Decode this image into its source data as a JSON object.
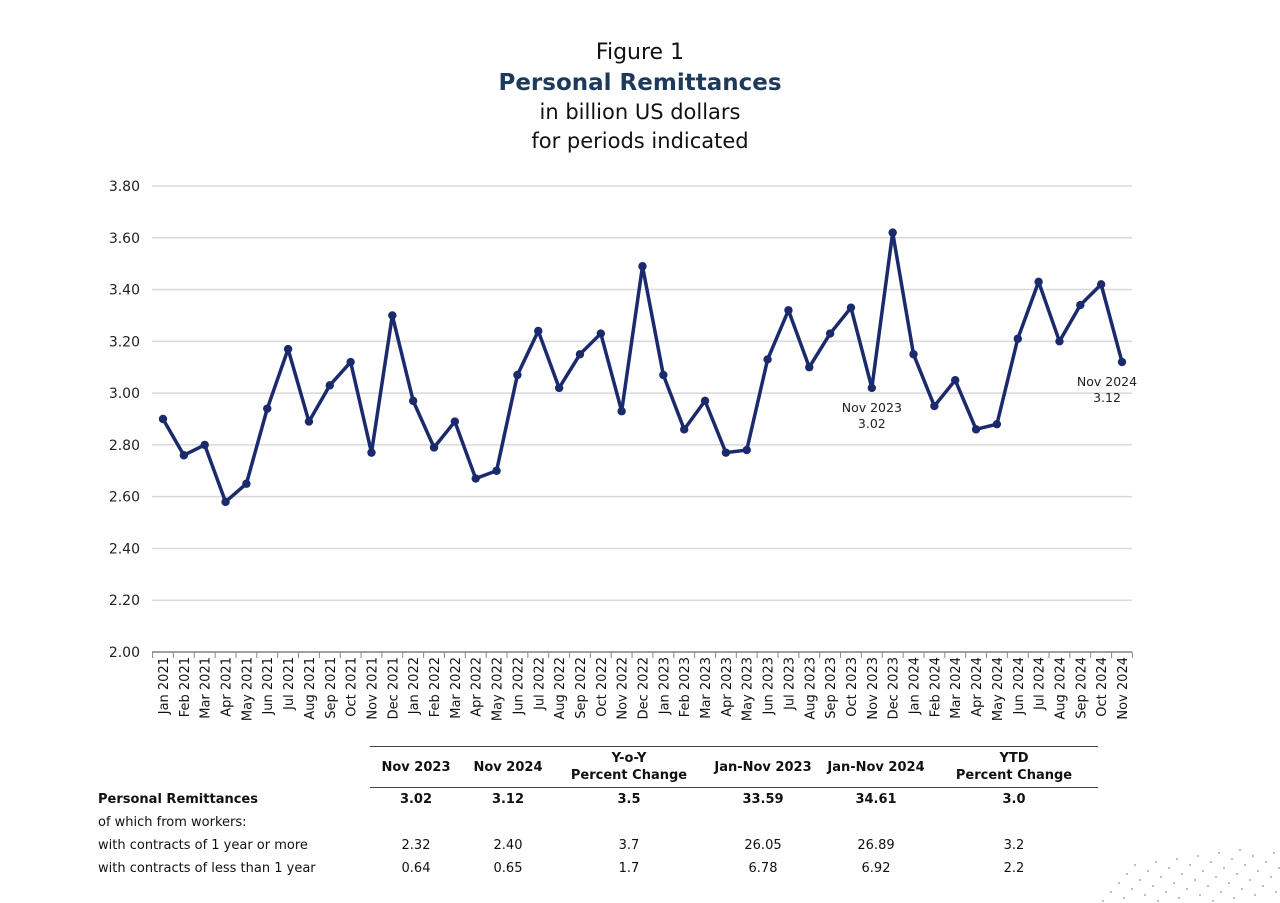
{
  "header": {
    "figure_label": "Figure 1",
    "title": "Personal Remittances",
    "subtitle_line1": "in billion US dollars",
    "subtitle_line2": "for periods indicated"
  },
  "chart_data": {
    "type": "line",
    "title": "Personal Remittances",
    "subtitle": "in billion US dollars for periods indicated",
    "xlabel": "",
    "ylabel": "",
    "ylim": [
      2.0,
      3.8
    ],
    "yticks": [
      "2.00",
      "2.20",
      "2.40",
      "2.60",
      "2.80",
      "3.00",
      "3.20",
      "3.40",
      "3.60",
      "3.80"
    ],
    "grid": true,
    "legend": "none",
    "line_color": "#1a2a6c",
    "categories": [
      "Jan 2021",
      "Feb 2021",
      "Mar 2021",
      "Apr 2021",
      "May 2021",
      "Jun 2021",
      "Jul 2021",
      "Aug 2021",
      "Sep 2021",
      "Oct 2021",
      "Nov 2021",
      "Dec 2021",
      "Jan 2022",
      "Feb 2022",
      "Mar 2022",
      "Apr 2022",
      "May 2022",
      "Jun 2022",
      "Jul 2022",
      "Aug 2022",
      "Sep 2022",
      "Oct 2022",
      "Nov 2022",
      "Dec 2022",
      "Jan 2023",
      "Feb 2023",
      "Mar 2023",
      "Apr 2023",
      "May 2023",
      "Jun 2023",
      "Jul 2023",
      "Aug 2023",
      "Sep 2023",
      "Oct 2023",
      "Nov 2023",
      "Dec 2023",
      "Jan 2024",
      "Feb 2024",
      "Mar 2024",
      "Apr 2024",
      "May 2024",
      "Jun 2024",
      "Jul 2024",
      "Aug 2024",
      "Sep 2024",
      "Oct 2024",
      "Nov 2024"
    ],
    "series": [
      {
        "name": "Personal Remittances",
        "values": [
          2.9,
          2.76,
          2.8,
          2.58,
          2.65,
          2.94,
          3.17,
          2.89,
          3.03,
          3.12,
          2.77,
          3.3,
          2.97,
          2.79,
          2.89,
          2.67,
          2.7,
          3.07,
          3.24,
          3.02,
          3.15,
          3.23,
          2.93,
          3.49,
          3.07,
          2.86,
          2.97,
          2.77,
          2.78,
          3.13,
          3.32,
          3.1,
          3.23,
          3.33,
          3.02,
          3.62,
          3.15,
          2.95,
          3.05,
          2.86,
          2.88,
          3.21,
          3.43,
          3.2,
          3.34,
          3.42,
          3.12
        ]
      }
    ],
    "annotations": [
      {
        "category": "Nov 2023",
        "line1": "Nov 2023",
        "line2": "3.02",
        "position": "below"
      },
      {
        "category": "Nov 2024",
        "line1": "Nov 2024",
        "line2": "3.12",
        "position": "below"
      }
    ]
  },
  "table": {
    "columns": [
      "",
      "Nov 2023",
      "Nov 2024",
      "Y-o-Y",
      "Jan-Nov 2023",
      "Jan-Nov 2024",
      "YTD"
    ],
    "columns_line2": [
      "",
      "",
      "",
      "Percent Change",
      "",
      "",
      "Percent Change"
    ],
    "rows": [
      {
        "label": "Personal Remittances",
        "bold": true,
        "values": [
          "3.02",
          "3.12",
          "3.5",
          "33.59",
          "34.61",
          "3.0"
        ]
      },
      {
        "label": "of which from workers:",
        "bold": false,
        "values": [
          "",
          "",
          "",
          "",
          "",
          ""
        ]
      },
      {
        "label": "with contracts of 1 year or more",
        "bold": false,
        "values": [
          "2.32",
          "2.40",
          "3.7",
          "26.05",
          "26.89",
          "3.2"
        ]
      },
      {
        "label": "with contracts of less than 1 year",
        "bold": false,
        "values": [
          "0.64",
          "0.65",
          "1.7",
          "6.78",
          "6.92",
          "2.2"
        ]
      }
    ]
  }
}
